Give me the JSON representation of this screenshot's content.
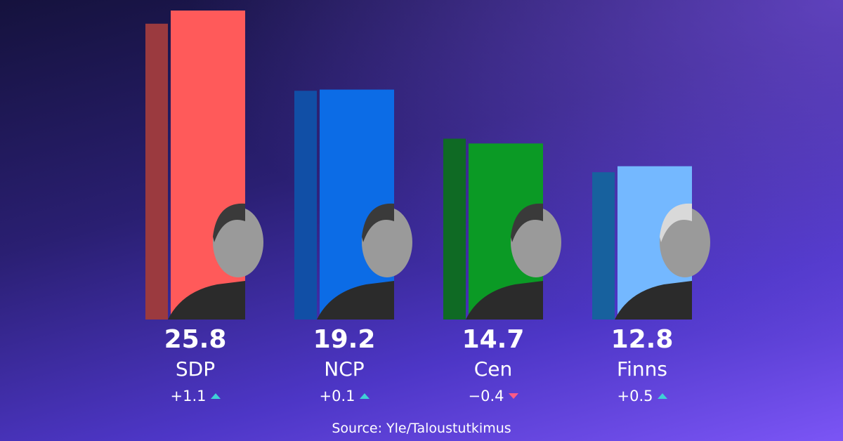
{
  "chart_data": {
    "type": "bar",
    "categories": [
      "SDP",
      "NCP",
      "Cen",
      "Finns"
    ],
    "series": [
      {
        "values": [
          24.7,
          19.1,
          15.1,
          12.3
        ]
      },
      {
        "values": [
          25.8,
          19.2,
          14.7,
          12.8
        ]
      }
    ],
    "value_labels": [
      "25.8",
      "19.2",
      "14.7",
      "12.8"
    ],
    "changes": [
      {
        "text": "+1.1",
        "direction": "up"
      },
      {
        "text": "+0.1",
        "direction": "up"
      },
      {
        "text": "−0.4",
        "direction": "down"
      },
      {
        "text": "+0.5",
        "direction": "up"
      }
    ],
    "colors": {
      "current": [
        "#ff5a5a",
        "#0c6ce6",
        "#0b9a25",
        "#74b8ff"
      ],
      "previous": [
        "#9b3a3f",
        "#114fa6",
        "#0f6a24",
        "#17619e"
      ]
    },
    "ylim": [
      0,
      25.8
    ],
    "source": "Source: Yle/Taloustutkimus"
  }
}
